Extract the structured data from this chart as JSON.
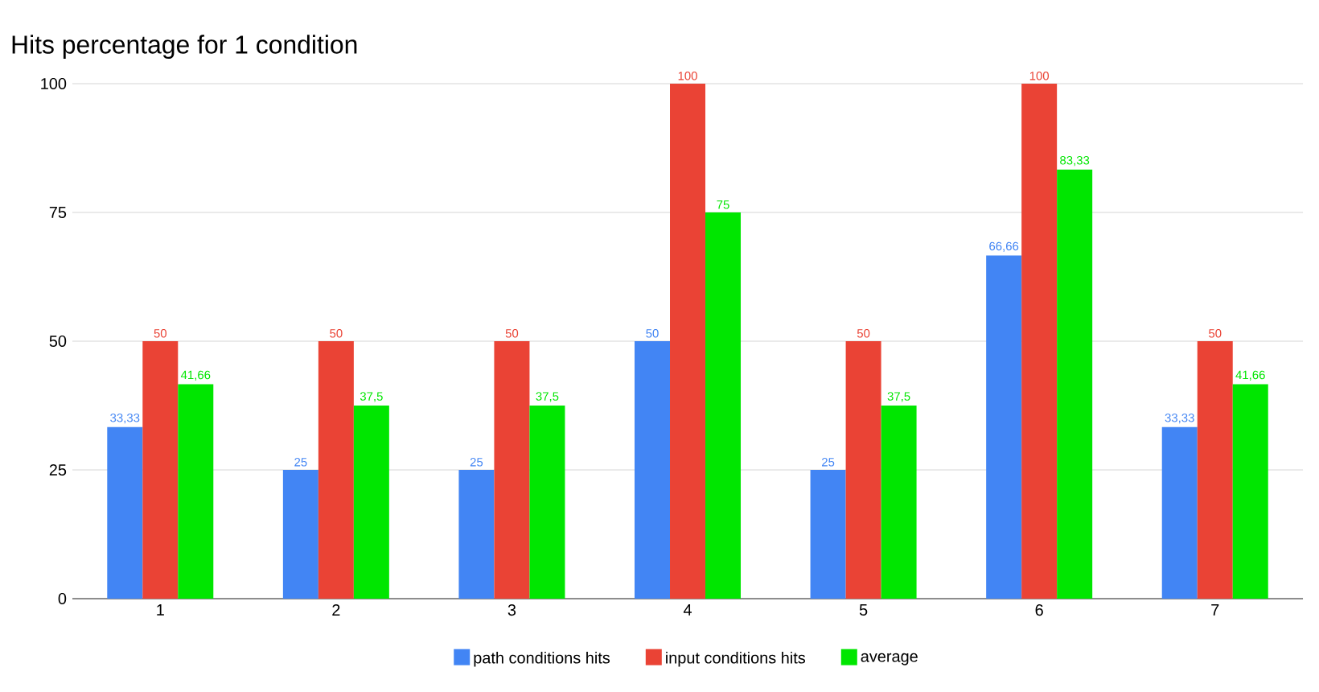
{
  "chart_data": {
    "type": "bar",
    "title": "Hits percentage for 1 condition",
    "categories": [
      "1",
      "2",
      "3",
      "4",
      "5",
      "6",
      "7"
    ],
    "series": [
      {
        "name": "path conditions hits",
        "color": "#4285f4",
        "values": [
          33.33,
          25,
          25,
          50,
          25,
          66.66,
          33.33
        ],
        "value_labels": [
          "33,33",
          "25",
          "25",
          "50",
          "25",
          "66,66",
          "33,33"
        ]
      },
      {
        "name": "input conditions hits",
        "color": "#ea4335",
        "values": [
          50,
          50,
          50,
          100,
          50,
          100,
          50
        ],
        "value_labels": [
          "50",
          "50",
          "50",
          "100",
          "50",
          "100",
          "50"
        ]
      },
      {
        "name": "average",
        "color": "#00e600",
        "values": [
          41.66,
          37.5,
          37.5,
          75,
          37.5,
          83.33,
          41.66
        ],
        "value_labels": [
          "41,66",
          "37,5",
          "37,5",
          "75",
          "37,5",
          "83,33",
          "41,66"
        ]
      }
    ],
    "ylim": [
      0,
      100
    ],
    "yticks": [
      0,
      25,
      50,
      75,
      100
    ],
    "grid": "y",
    "legend": "bottom"
  }
}
